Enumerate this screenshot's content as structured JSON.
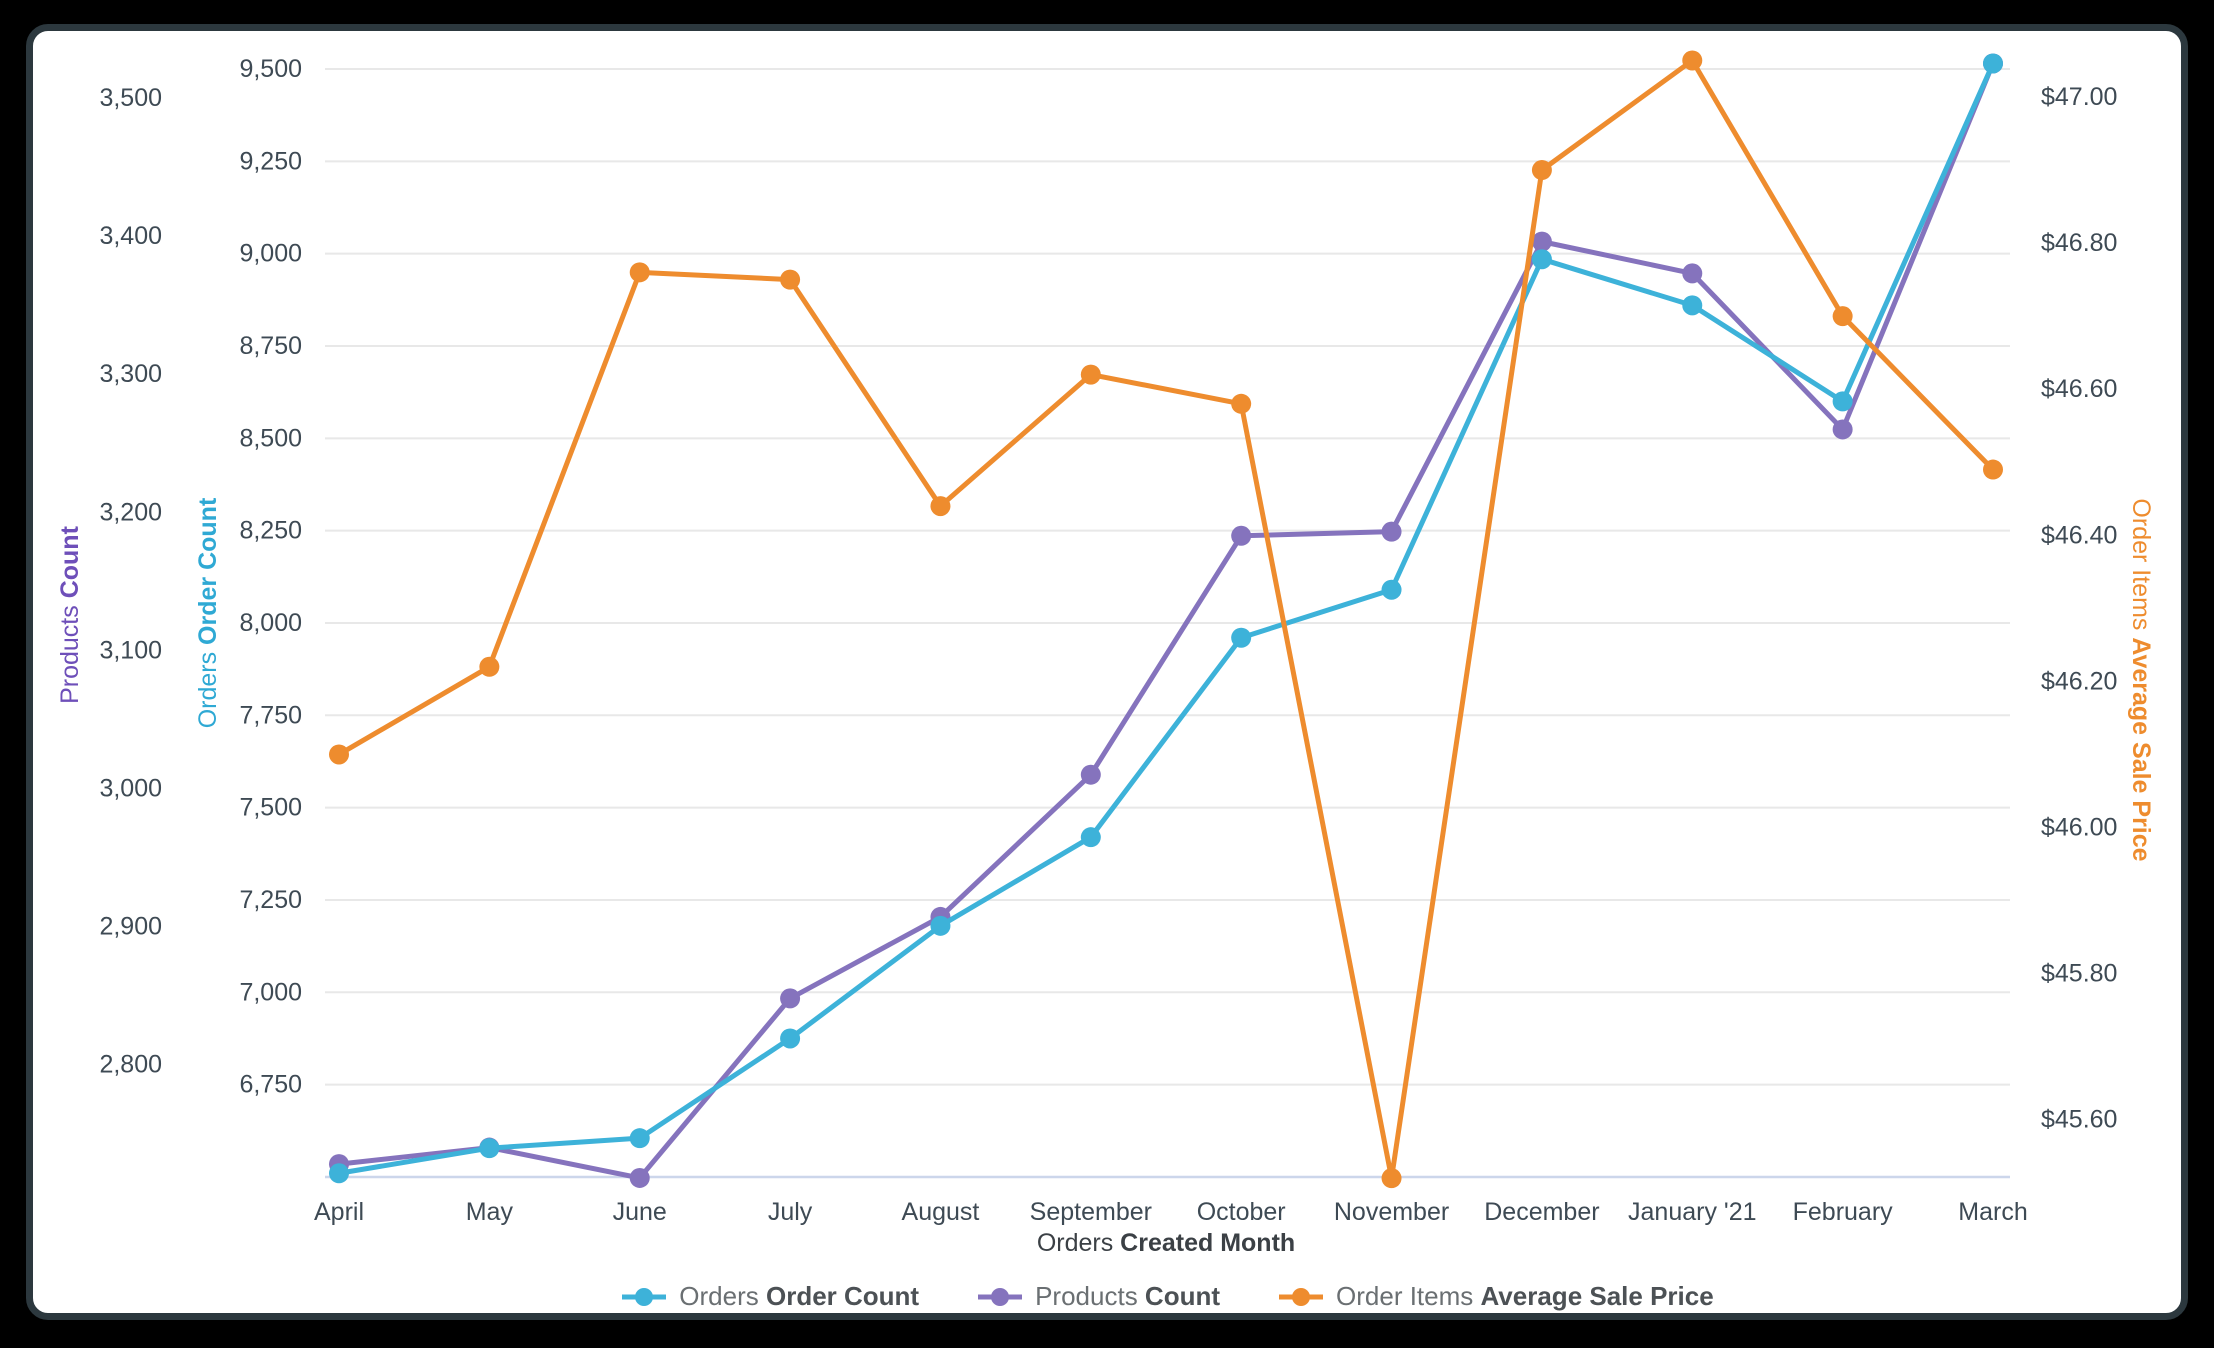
{
  "page": {
    "background": "#000000",
    "card_background": "#ffffff",
    "card_border_color": "#2c383e"
  },
  "chart_data": {
    "type": "line",
    "categories": [
      "April",
      "May",
      "June",
      "July",
      "August",
      "September",
      "October",
      "November",
      "December",
      "January '21",
      "February",
      "March"
    ],
    "series": [
      {
        "name_regular": "Orders",
        "name_bold": "Order Count",
        "color": "#3db2d9",
        "axis": "orders",
        "z": 2,
        "values": [
          6510,
          6578,
          6605,
          6875,
          7180,
          7420,
          7960,
          8090,
          8985,
          8860,
          8600,
          9515
        ]
      },
      {
        "name_regular": "Products",
        "name_bold": "Count",
        "color": "#8573bd",
        "axis": "products",
        "z": 1,
        "values": [
          2728,
          2740,
          2718,
          2848,
          2907,
          3010,
          3183,
          3186,
          3396,
          3373,
          3260,
          3525
        ]
      },
      {
        "name_regular": "Order Items",
        "name_bold": "Average Sale Price",
        "color": "#ee8c2e",
        "axis": "price",
        "z": 3,
        "values": [
          46.1,
          46.22,
          46.76,
          46.75,
          46.44,
          46.62,
          46.58,
          45.52,
          46.9,
          47.05,
          46.7,
          46.49
        ]
      }
    ],
    "x_axis": {
      "title_regular": "Orders",
      "title_bold": "Created Month",
      "title_color": "#3b4045",
      "tick_color": "#3e4a54"
    },
    "axes": {
      "orders": {
        "side": "left-inner",
        "title_regular": "Orders",
        "title_bold": "Order Count",
        "title_color": "#2fa9d4",
        "format": "number",
        "range": [
          6500,
          9550
        ],
        "ticks": [
          9500,
          9250,
          9000,
          8750,
          8500,
          8250,
          8000,
          7750,
          7500,
          7250,
          7000,
          6750
        ]
      },
      "products": {
        "side": "left-outer",
        "title_regular": "Products",
        "title_bold": "Count",
        "title_color": "#6e4fb9",
        "format": "number",
        "range": [
          2719,
          3542
        ],
        "ticks": [
          3500,
          3400,
          3300,
          3200,
          3100,
          3000,
          2900,
          2800
        ]
      },
      "price": {
        "side": "right",
        "title_regular": "Order Items",
        "title_bold": "Average Sale Price",
        "title_color": "#ee8c2e",
        "format": "currency",
        "range": [
          45.51,
          47.06
        ],
        "ticks": [
          47.0,
          46.8,
          46.6,
          46.4,
          46.2,
          46.0,
          45.8,
          45.6
        ]
      }
    },
    "grid": true,
    "gridline_color": "#e8e8e8",
    "axisline_color": "#ccd6eb",
    "tick_label_color": "#3e4a54",
    "legend_position": "bottom"
  }
}
